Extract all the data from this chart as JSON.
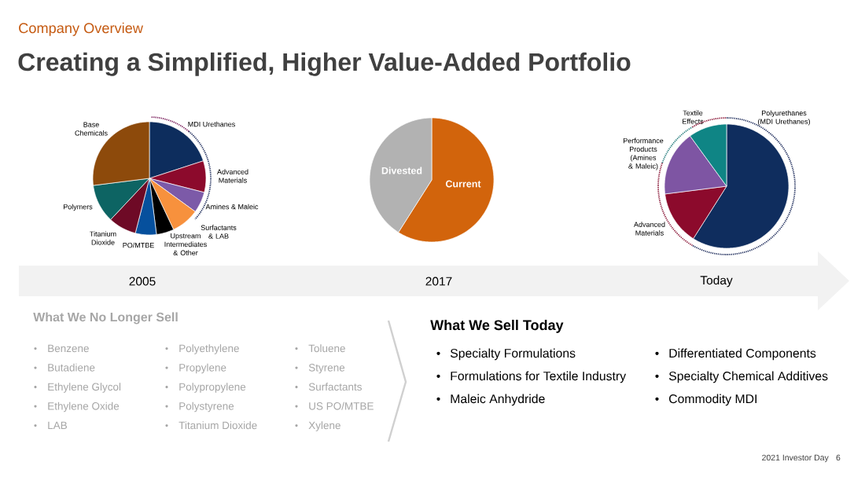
{
  "chart_data": [
    {
      "type": "other",
      "title": "Creating a Simplified, Higher Value-Added Portfolio",
      "subtitle": "Company Overview"
    },
    {
      "type": "pie",
      "title": "2005",
      "categories": [
        "MDI Urethanes",
        "Advanced Materials",
        "Amines & Maleic",
        "Surfactants & LAB",
        "Upstream Intermediates & Other",
        "PO/MTBE",
        "Titanium Dioxide",
        "Polymers",
        "Base Chemicals"
      ],
      "values": [
        20,
        9,
        6,
        8,
        5,
        6,
        8,
        11,
        27
      ],
      "colors": [
        "#0D2D5D",
        "#8C0A2C",
        "#7C5AA8",
        "#F7913D",
        "#000000",
        "#06509D",
        "#6E0A26",
        "#0D6463",
        "#8D4A0B"
      ]
    },
    {
      "type": "pie",
      "title": "2017",
      "categories": [
        "Current",
        "Divested"
      ],
      "values": [
        59,
        41
      ],
      "colors": [
        "#D2640C",
        "#B2B2B2"
      ]
    },
    {
      "type": "pie",
      "title": "Today",
      "categories": [
        "Polyurethanes (MDI Urethanes)",
        "Advanced Materials",
        "Performance Products (Amines & Maleic)",
        "Textile Effects"
      ],
      "values": [
        59,
        14,
        17,
        10
      ],
      "colors": [
        "#0F2D5E",
        "#8C0A2C",
        "#7E55A3",
        "#0F8585"
      ]
    },
    {
      "type": "other",
      "title": "What We No Longer Sell",
      "annotations": [
        "Benzene",
        "Butadiene",
        "Ethylene Glycol",
        "Ethylene Oxide",
        "LAB",
        "Polyethylene",
        "Propylene",
        "Polypropylene",
        "Polystyrene",
        "Titanium Dioxide",
        "Toluene",
        "Styrene",
        "Surfactants",
        "US PO/MTBE",
        "Xylene"
      ]
    },
    {
      "type": "other",
      "title": "What We Sell Today",
      "annotations": [
        "Specialty Formulations",
        "Formulations for Textile Industry",
        "Maleic Anhydride",
        "Differentiated Components",
        "Specialty Chemical Additives",
        "Commodity MDI"
      ]
    },
    {
      "type": "other",
      "annotations": [
        "2021 Investor Day",
        "6"
      ]
    }
  ]
}
